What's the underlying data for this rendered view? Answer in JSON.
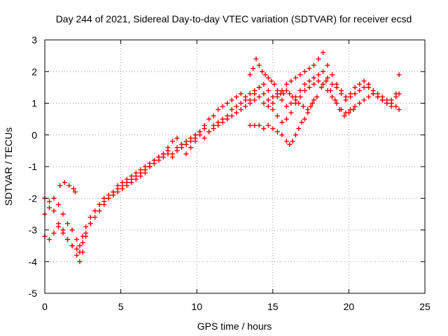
{
  "chart_data": {
    "type": "scatter",
    "title": "Day 244 of 2021, Sidereal Day-to-day VTEC variation (SDTVAR) for receiver ecsd",
    "xlabel": "GPS time / hours",
    "ylabel": "SDTVAR / TECUs",
    "xlim": [
      0,
      25
    ],
    "ylim": [
      -5,
      3
    ],
    "xticks": [
      0,
      5,
      10,
      15,
      20,
      25
    ],
    "yticks": [
      -5,
      -4,
      -3,
      -2,
      -1,
      0,
      1,
      2,
      3
    ],
    "grid": true,
    "marker": "+",
    "color": "#ff0000",
    "series": [
      {
        "x": [
          0.0,
          0.3,
          0.6,
          0.9,
          1.2,
          1.5,
          1.8,
          2.1,
          2.3,
          2.5,
          2.7,
          3.0,
          3.3,
          3.6,
          3.9,
          4.2,
          4.5,
          4.8,
          5.1,
          5.4,
          5.7,
          6.0,
          6.3,
          6.6,
          6.9,
          7.2,
          7.5,
          7.8,
          8.1,
          8.4,
          8.7,
          9.0,
          9.3,
          9.6,
          9.9,
          10.2,
          10.5,
          10.8,
          11.1,
          11.4,
          11.7,
          12.0,
          12.3,
          12.6,
          12.9,
          13.2,
          13.5,
          13.8,
          14.1,
          14.4,
          14.7,
          15.0,
          15.3,
          15.6,
          15.9,
          16.2,
          16.5,
          16.8,
          17.1,
          17.4,
          17.7,
          18.0,
          18.3,
          18.6,
          18.9,
          19.2,
          19.5,
          19.8,
          20.1,
          20.4,
          20.7,
          21.0,
          21.3,
          21.6,
          21.9,
          22.2,
          22.5,
          22.8,
          23.1,
          23.3
        ],
        "y": [
          -2.0,
          -2.1,
          -2.4,
          -2.8,
          -3.0,
          -3.3,
          -3.5,
          -3.8,
          -4.0,
          -3.7,
          -3.2,
          -2.8,
          -2.4,
          -2.2,
          -2.0,
          -1.9,
          -1.8,
          -1.6,
          -1.5,
          -1.4,
          -1.3,
          -1.2,
          -1.1,
          -1.0,
          -0.9,
          -0.8,
          -0.7,
          -0.6,
          -0.5,
          -0.6,
          -0.4,
          -0.3,
          -0.2,
          -0.1,
          0.0,
          0.1,
          0.2,
          0.1,
          0.3,
          0.4,
          0.5,
          0.6,
          0.8,
          0.9,
          1.0,
          1.1,
          1.3,
          1.4,
          1.5,
          1.6,
          1.4,
          1.2,
          1.3,
          1.1,
          0.9,
          1.0,
          1.2,
          1.4,
          1.6,
          1.7,
          1.8,
          1.9,
          2.0,
          1.8,
          1.6,
          1.5,
          1.3,
          1.1,
          1.2,
          1.3,
          1.4,
          1.5,
          1.6,
          1.4,
          1.3,
          1.2,
          1.1,
          1.0,
          0.9,
          0.8
        ]
      },
      {
        "x": [
          0.0,
          0.3,
          0.6,
          0.9,
          1.2,
          1.5,
          1.8,
          2.1,
          2.3,
          2.5,
          2.7,
          3.0,
          3.3,
          3.6,
          3.9,
          4.2,
          4.5,
          4.8,
          5.1,
          5.4,
          5.7,
          6.0,
          6.3,
          6.6,
          6.9,
          7.2,
          7.5,
          7.8,
          8.1,
          8.4,
          8.7,
          9.0,
          9.3,
          9.6,
          9.9,
          10.2,
          10.5,
          10.8,
          11.1,
          11.4,
          11.7,
          12.0,
          12.3,
          12.6,
          12.9,
          13.2,
          13.5,
          13.8,
          14.1,
          14.4,
          14.7,
          15.0,
          15.3,
          15.6,
          15.9,
          16.2,
          16.5,
          16.8,
          17.1,
          17.4,
          17.7,
          18.0,
          18.3,
          18.6,
          18.9,
          19.2,
          19.5,
          19.8,
          20.1,
          20.4,
          20.7,
          21.0,
          21.3,
          21.6,
          21.9,
          22.2,
          22.5,
          22.8,
          23.1,
          23.3
        ],
        "y": [
          -3.2,
          -3.3,
          -3.1,
          -2.9,
          -3.1,
          -3.3,
          -3.5,
          -3.6,
          -3.7,
          -3.4,
          -3.1,
          -2.8,
          -2.6,
          -2.4,
          -2.2,
          -2.0,
          -1.8,
          -1.7,
          -1.6,
          -1.5,
          -1.4,
          -1.3,
          -1.2,
          -1.1,
          -1.0,
          -0.9,
          -0.8,
          -0.7,
          -0.6,
          -0.7,
          -0.5,
          -0.4,
          -0.3,
          -0.2,
          -0.1,
          0.0,
          -0.1,
          0.1,
          0.2,
          0.3,
          0.4,
          0.5,
          0.6,
          0.7,
          0.8,
          0.9,
          1.0,
          1.1,
          1.2,
          1.0,
          0.9,
          0.8,
          0.6,
          0.4,
          0.5,
          0.7,
          1.0,
          1.2,
          1.4,
          1.5,
          1.6,
          1.7,
          1.6,
          1.4,
          1.2,
          1.0,
          0.8,
          0.7,
          0.8,
          0.9,
          1.0,
          1.1,
          1.2,
          1.3,
          1.2,
          1.1,
          1.0,
          0.9,
          1.2,
          1.3
        ]
      },
      {
        "x": [
          0.0,
          0.3,
          0.6,
          0.9,
          1.2,
          1.5,
          1.8,
          2.1,
          2.3,
          2.5,
          2.7,
          3.0,
          3.3,
          3.6,
          3.9,
          4.2,
          4.5,
          4.8,
          5.1,
          5.4,
          5.7,
          6.0,
          6.3,
          6.6,
          6.9,
          7.2,
          7.5,
          7.8,
          8.1,
          8.4,
          8.7,
          9.0,
          9.3,
          9.6,
          9.9,
          10.2,
          10.5,
          10.8,
          11.1,
          11.4,
          11.7,
          12.0,
          12.3,
          12.6,
          12.9,
          13.2,
          13.5,
          13.8,
          14.1,
          14.4,
          14.7,
          15.0,
          15.3,
          15.6,
          15.9,
          16.2,
          16.5,
          16.8,
          17.1,
          17.4,
          17.7,
          18.0,
          18.3,
          18.6,
          18.9,
          19.2,
          19.5,
          19.8,
          20.1,
          20.4,
          20.7,
          21.0,
          21.3,
          21.6,
          21.9,
          22.2,
          22.5,
          22.8,
          23.1,
          23.3
        ],
        "y": [
          -2.5,
          -2.3,
          -2.0,
          -2.2,
          -2.5,
          -2.8,
          -3.0,
          -3.3,
          -3.5,
          -3.2,
          -2.9,
          -2.6,
          -2.4,
          -2.2,
          -2.1,
          -2.0,
          -1.9,
          -1.8,
          -1.7,
          -1.6,
          -1.5,
          -1.4,
          -1.3,
          -1.2,
          -1.0,
          -0.8,
          -0.7,
          -0.6,
          -0.4,
          -0.2,
          -0.1,
          -0.3,
          -0.6,
          -0.4,
          -0.2,
          0.1,
          0.3,
          0.5,
          0.6,
          0.8,
          0.9,
          1.0,
          1.1,
          1.2,
          1.3,
          1.2,
          1.1,
          1.3,
          1.5,
          1.3,
          1.1,
          1.0,
          1.2,
          1.4,
          1.6,
          1.7,
          1.8,
          1.9,
          2.0,
          2.1,
          2.2,
          2.4,
          2.6,
          2.2,
          1.9,
          1.6,
          1.4,
          1.2,
          1.3,
          1.5,
          1.6,
          1.7,
          1.5,
          1.3,
          1.2,
          1.1,
          1.0,
          1.1,
          1.3,
          1.9
        ]
      },
      {
        "x": [
          1.0,
          1.3,
          1.6,
          1.9,
          2.0,
          13.5,
          13.7,
          13.9,
          14.1,
          14.3,
          14.5,
          14.7,
          14.9,
          15.1,
          15.3,
          15.5,
          15.7,
          15.9,
          16.1,
          16.3,
          16.5,
          16.7,
          17.0,
          17.3,
          17.6,
          17.9,
          18.2,
          18.5,
          18.8,
          19.1,
          19.4,
          19.7,
          20.0,
          20.3
        ],
        "y": [
          -1.6,
          -1.5,
          -1.6,
          -1.7,
          -1.8,
          1.9,
          2.1,
          2.4,
          2.2,
          2.0,
          1.9,
          1.8,
          1.7,
          1.6,
          1.4,
          1.3,
          1.3,
          1.4,
          1.3,
          1.2,
          1.1,
          1.0,
          0.9,
          0.8,
          1.0,
          1.2,
          1.5,
          1.7,
          1.4,
          1.1,
          0.8,
          0.6,
          0.7,
          0.8
        ]
      },
      {
        "x": [
          13.5,
          13.8,
          14.1,
          14.4,
          14.7,
          15.0,
          15.3,
          15.6,
          15.9,
          16.1,
          16.3,
          16.5,
          16.7,
          16.9,
          17.1,
          17.3,
          17.5,
          17.7
        ],
        "y": [
          0.3,
          0.3,
          0.3,
          0.2,
          0.3,
          0.2,
          0.1,
          0.0,
          -0.2,
          -0.3,
          -0.2,
          0.0,
          0.2,
          0.4,
          0.5,
          0.7,
          0.9,
          1.1
        ]
      }
    ]
  }
}
